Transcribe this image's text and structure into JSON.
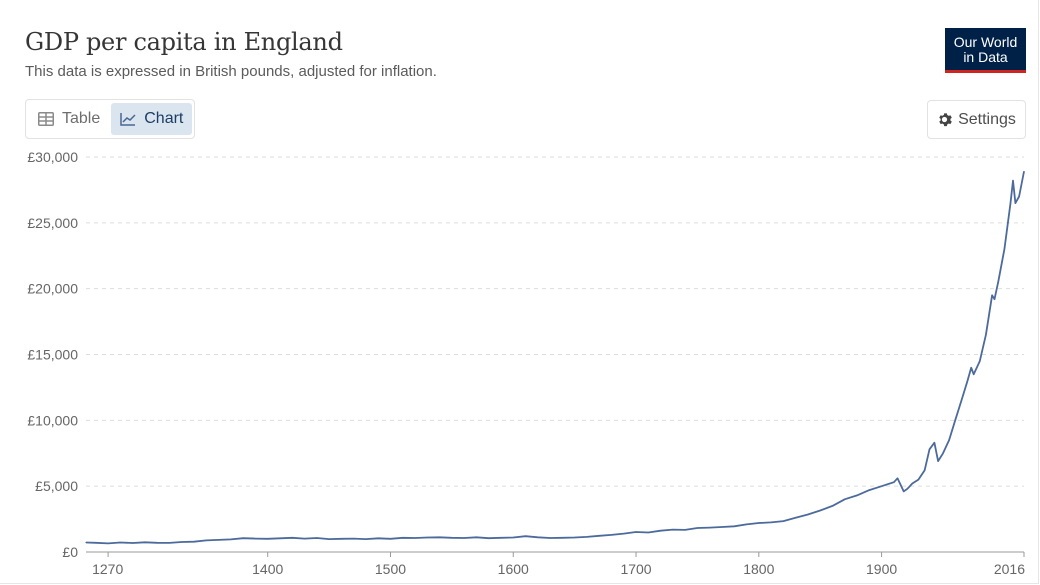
{
  "header": {
    "title": "GDP per capita in England",
    "subtitle": "This data is expressed in British pounds, adjusted for inflation."
  },
  "logo": {
    "line1": "Our World",
    "line2": "in Data"
  },
  "tabs": [
    {
      "label": "Table",
      "icon": "table-icon",
      "active": false
    },
    {
      "label": "Chart",
      "icon": "line-chart-icon",
      "active": true
    }
  ],
  "settings": {
    "label": "Settings",
    "icon": "gear-icon"
  },
  "colors": {
    "line": "#4c6a9c",
    "grid": "#dddddd",
    "accent": "#002147",
    "logo_stripe": "#ce261e"
  },
  "chart_data": {
    "type": "line",
    "title": "GDP per capita in England",
    "xlabel": "",
    "ylabel": "",
    "xlim": [
      1252,
      2016
    ],
    "ylim": [
      0,
      30000
    ],
    "y_ticks": [
      {
        "value": 0,
        "label": "£0"
      },
      {
        "value": 5000,
        "label": "£5,000"
      },
      {
        "value": 10000,
        "label": "£10,000"
      },
      {
        "value": 15000,
        "label": "£15,000"
      },
      {
        "value": 20000,
        "label": "£20,000"
      },
      {
        "value": 25000,
        "label": "£25,000"
      },
      {
        "value": 30000,
        "label": "£30,000"
      }
    ],
    "x_ticks": [
      {
        "value": 1270,
        "label": "1270"
      },
      {
        "value": 1400,
        "label": "1400"
      },
      {
        "value": 1500,
        "label": "1500"
      },
      {
        "value": 1600,
        "label": "1600"
      },
      {
        "value": 1700,
        "label": "1700"
      },
      {
        "value": 1800,
        "label": "1800"
      },
      {
        "value": 1900,
        "label": "1900"
      },
      {
        "value": 2016,
        "label": "2016"
      }
    ],
    "grid": true,
    "series": [
      {
        "name": "England",
        "x": [
          1252,
          1260,
          1270,
          1280,
          1290,
          1300,
          1310,
          1320,
          1330,
          1340,
          1350,
          1360,
          1370,
          1380,
          1390,
          1400,
          1410,
          1420,
          1430,
          1440,
          1450,
          1460,
          1470,
          1480,
          1490,
          1500,
          1510,
          1520,
          1530,
          1540,
          1550,
          1560,
          1570,
          1580,
          1590,
          1600,
          1610,
          1620,
          1630,
          1640,
          1650,
          1660,
          1670,
          1680,
          1690,
          1700,
          1710,
          1720,
          1730,
          1740,
          1750,
          1760,
          1770,
          1780,
          1790,
          1800,
          1810,
          1820,
          1830,
          1840,
          1850,
          1860,
          1870,
          1880,
          1890,
          1900,
          1910,
          1913,
          1918,
          1921,
          1925,
          1930,
          1935,
          1939,
          1943,
          1946,
          1950,
          1955,
          1960,
          1965,
          1970,
          1973,
          1975,
          1980,
          1985,
          1990,
          1992,
          1995,
          2000,
          2005,
          2007,
          2009,
          2012,
          2016
        ],
        "values": [
          720,
          700,
          650,
          720,
          680,
          740,
          700,
          690,
          760,
          780,
          880,
          920,
          960,
          1050,
          1020,
          1000,
          1040,
          1080,
          1020,
          1060,
          980,
          1000,
          1020,
          980,
          1040,
          1000,
          1080,
          1060,
          1100,
          1120,
          1080,
          1060,
          1120,
          1050,
          1080,
          1100,
          1200,
          1120,
          1060,
          1080,
          1100,
          1150,
          1230,
          1300,
          1400,
          1520,
          1480,
          1620,
          1700,
          1680,
          1820,
          1850,
          1900,
          1950,
          2100,
          2200,
          2250,
          2350,
          2600,
          2850,
          3150,
          3500,
          4000,
          4300,
          4700,
          5000,
          5300,
          5600,
          4600,
          4800,
          5200,
          5500,
          6200,
          7800,
          8300,
          6900,
          7500,
          8500,
          10000,
          11500,
          13000,
          14000,
          13500,
          14500,
          16500,
          19500,
          19200,
          20500,
          23000,
          26500,
          28200,
          26500,
          27000,
          28900
        ]
      }
    ]
  }
}
